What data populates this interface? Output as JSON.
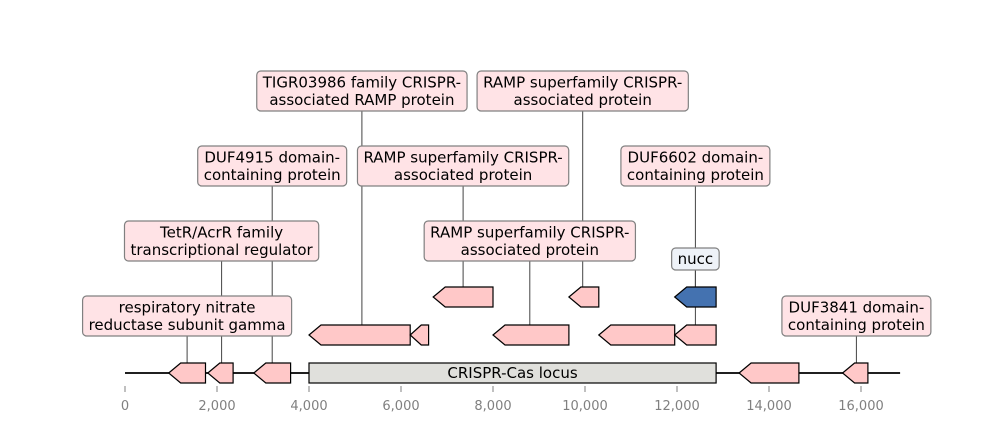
{
  "diagram": {
    "x_axis": {
      "min": 0,
      "max": 17000,
      "ticks": [
        0,
        2000,
        4000,
        6000,
        8000,
        10000,
        12000,
        14000,
        16000
      ],
      "tick_labels": [
        "0",
        "2,000",
        "4,000",
        "6,000",
        "8,000",
        "10,000",
        "12,000",
        "14,000",
        "16,000"
      ]
    },
    "contig": {
      "start": 0,
      "end": 16850
    },
    "locus": {
      "label": "CRISPR-Cas locus",
      "start": 4000,
      "end": 12850,
      "color": "#e0e0dc"
    },
    "genes": [
      {
        "start": 950,
        "end": 1750,
        "strand": -1,
        "row": 0,
        "color": "#ffc8c8"
      },
      {
        "start": 1800,
        "end": 2350,
        "strand": -1,
        "row": 0,
        "color": "#ffc8c8"
      },
      {
        "start": 2800,
        "end": 3600,
        "strand": -1,
        "row": 0,
        "color": "#ffc8c8"
      },
      {
        "start": 13350,
        "end": 14650,
        "strand": -1,
        "row": 0,
        "color": "#ffc8c8"
      },
      {
        "start": 15600,
        "end": 16150,
        "strand": -1,
        "row": 0,
        "color": "#ffc8c8"
      },
      {
        "start": 4000,
        "end": 6200,
        "strand": -1,
        "row": 1,
        "color": "#ffc8c8"
      },
      {
        "start": 6200,
        "end": 6600,
        "strand": -1,
        "row": 1,
        "color": "#ffc8c8"
      },
      {
        "start": 8000,
        "end": 9650,
        "strand": -1,
        "row": 1,
        "color": "#ffc8c8"
      },
      {
        "start": 10300,
        "end": 11950,
        "strand": -1,
        "row": 1,
        "color": "#ffc8c8"
      },
      {
        "start": 11950,
        "end": 12850,
        "strand": -1,
        "row": 1,
        "color": "#ffc8c8"
      },
      {
        "start": 6700,
        "end": 8000,
        "strand": -1,
        "row": 2,
        "color": "#ffc8c8"
      },
      {
        "start": 9650,
        "end": 10300,
        "strand": -1,
        "row": 2,
        "color": "#ffc8c8"
      },
      {
        "start": 11950,
        "end": 12850,
        "strand": -1,
        "row": 2,
        "color": "#4472b0"
      }
    ],
    "annotations": [
      {
        "lines": [
          "respiratory nitrate",
          "reductase subunit gamma"
        ],
        "x": 1350,
        "anchor_row": 0,
        "level": 0,
        "color": "#ffe3e6"
      },
      {
        "lines": [
          "TetR/AcrR family",
          "transcriptional regulator"
        ],
        "x": 2100,
        "anchor_row": 0,
        "level": 2,
        "color": "#ffe3e6"
      },
      {
        "lines": [
          "DUF4915 domain-",
          "containing protein"
        ],
        "x": 3200,
        "anchor_row": 0,
        "level": 3,
        "color": "#ffe3e6"
      },
      {
        "lines": [
          "TIGR03986 family CRISPR-",
          "associated RAMP protein"
        ],
        "x": 5150,
        "anchor_row": 1,
        "level": 4,
        "color": "#ffe3e6"
      },
      {
        "lines": [
          "RAMP superfamily CRISPR-",
          "associated protein"
        ],
        "x": 7350,
        "anchor_row": 2,
        "level": 3,
        "color": "#ffe3e6"
      },
      {
        "lines": [
          "RAMP superfamily CRISPR-",
          "associated protein"
        ],
        "x": 8800,
        "anchor_row": 1,
        "level": 2,
        "color": "#ffe3e6"
      },
      {
        "lines": [
          "RAMP superfamily CRISPR-",
          "associated protein"
        ],
        "x": 9950,
        "anchor_row": 2,
        "level": 4,
        "color": "#ffe3e6"
      },
      {
        "lines": [
          "DUF6602 domain-",
          "containing protein"
        ],
        "x": 12400,
        "anchor_row": 1,
        "level": 3,
        "color": "#ffe3e6"
      },
      {
        "lines": [
          "nucc"
        ],
        "x": 12400,
        "anchor_row": 2,
        "level": 1.5,
        "color": "#eef2f8"
      },
      {
        "lines": [
          "DUF3841 domain-",
          "containing protein"
        ],
        "x": 15900,
        "anchor_row": 0,
        "level": 0,
        "color": "#ffe3e6"
      }
    ]
  }
}
